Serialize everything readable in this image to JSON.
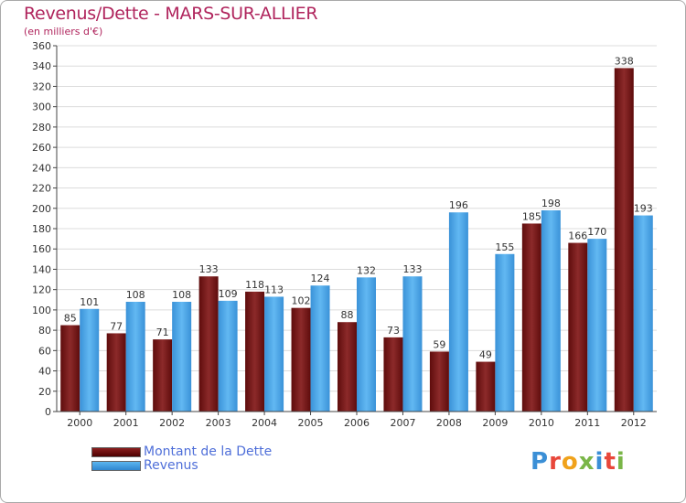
{
  "header": {
    "title": "Revenus/Dette - MARS-SUR-ALLIER",
    "subtitle": "(en milliers d'€)"
  },
  "legend": {
    "dette_label": "Montant de la Dette",
    "revenus_label": "Revenus"
  },
  "logo": {
    "text": "Proxiti"
  },
  "colors": {
    "dette": "#7a1a1a",
    "revenus": "#4aa3e6",
    "title": "#b0255d",
    "legend_text": "#4f6fd9"
  },
  "chart_data": {
    "type": "bar",
    "title": "Revenus/Dette - MARS-SUR-ALLIER",
    "ylabel": "(en milliers d'€)",
    "xlabel": "",
    "categories": [
      "2000",
      "2001",
      "2002",
      "2003",
      "2004",
      "2005",
      "2006",
      "2007",
      "2008",
      "2009",
      "2010",
      "2011",
      "2012"
    ],
    "series": [
      {
        "name": "Montant de la Dette",
        "values": [
          85,
          77,
          71,
          133,
          118,
          102,
          88,
          73,
          59,
          49,
          185,
          166,
          338
        ]
      },
      {
        "name": "Revenus",
        "values": [
          101,
          108,
          108,
          109,
          113,
          124,
          132,
          133,
          196,
          155,
          198,
          170,
          193
        ]
      }
    ],
    "ylim": [
      0,
      360
    ],
    "ytick_step": 20,
    "grid": true,
    "legend_position": "bottom-left"
  }
}
